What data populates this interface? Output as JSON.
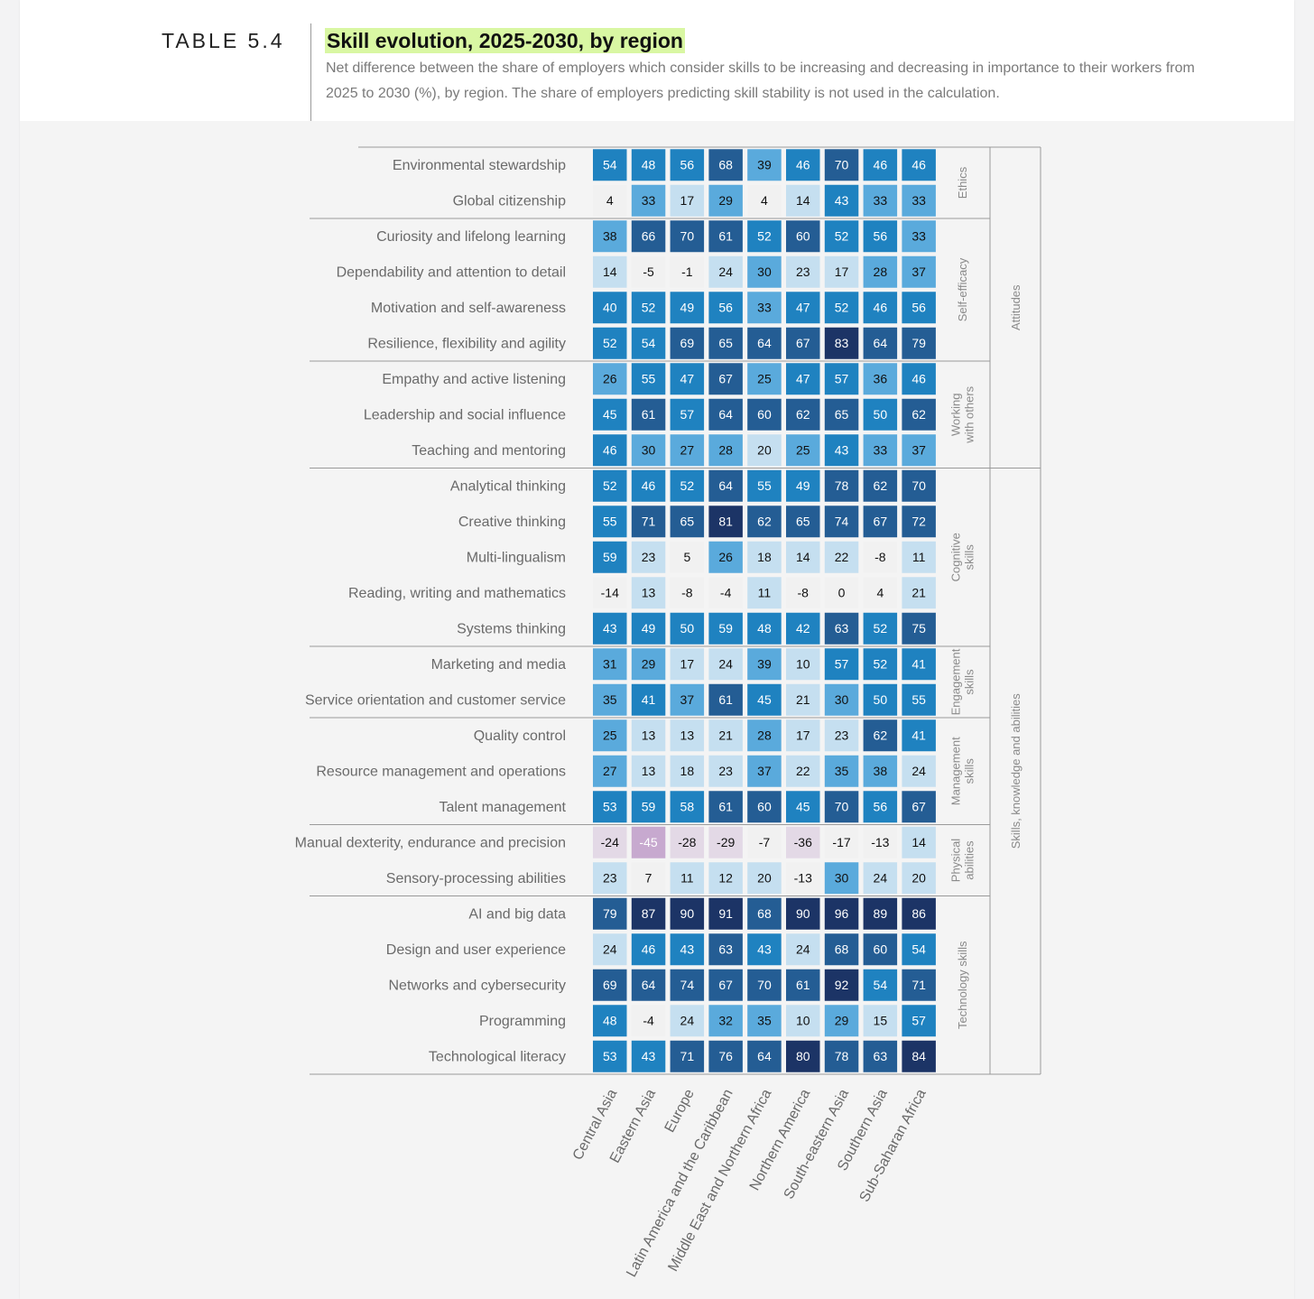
{
  "table_label": "TABLE 5.4",
  "title": "Skill evolution, 2025-2030, by region",
  "subtitle": "Net difference between the share of employers which consider skills to be increasing and decreasing in importance to their workers from 2025 to 2030 (%), by region. The share of employers predicting skill stability is not used in the calculation.",
  "chart_data": {
    "type": "heatmap",
    "title": "Skill evolution, 2025-2030, by region",
    "columns": [
      "Central Asia",
      "Eastern Asia",
      "Europe",
      "Latin America and the Caribbean",
      "Middle East and Northern Africa",
      "Northern America",
      "South-eastern Asia",
      "Southern Asia",
      "Sub-Saharan Africa"
    ],
    "rows": [
      "Environmental stewardship",
      "Global citizenship",
      "Curiosity and lifelong learning",
      "Dependability and attention to detail",
      "Motivation and self-awareness",
      "Resilience, flexibility and agility",
      "Empathy and active listening",
      "Leadership and social influence",
      "Teaching and mentoring",
      "Analytical thinking",
      "Creative thinking",
      "Multi-lingualism",
      "Reading, writing and mathematics",
      "Systems thinking",
      "Marketing and media",
      "Service orientation and customer service",
      "Quality control",
      "Resource management and operations",
      "Talent management",
      "Manual dexterity, endurance and precision",
      "Sensory-processing abilities",
      "AI and big data",
      "Design and user experience",
      "Networks and cybersecurity",
      "Programming",
      "Technological literacy"
    ],
    "values": [
      [
        54,
        48,
        56,
        68,
        39,
        46,
        70,
        46,
        46
      ],
      [
        4,
        33,
        17,
        29,
        4,
        14,
        43,
        33,
        33
      ],
      [
        38,
        66,
        70,
        61,
        52,
        60,
        52,
        56,
        33
      ],
      [
        14,
        -5,
        -1,
        24,
        30,
        23,
        17,
        28,
        37
      ],
      [
        40,
        52,
        49,
        56,
        33,
        47,
        52,
        46,
        56
      ],
      [
        52,
        54,
        69,
        65,
        64,
        67,
        83,
        64,
        79
      ],
      [
        26,
        55,
        47,
        67,
        25,
        47,
        57,
        36,
        46
      ],
      [
        45,
        61,
        57,
        64,
        60,
        62,
        65,
        50,
        62
      ],
      [
        46,
        30,
        27,
        28,
        20,
        25,
        43,
        33,
        37
      ],
      [
        52,
        46,
        52,
        64,
        55,
        49,
        78,
        62,
        70
      ],
      [
        55,
        71,
        65,
        81,
        62,
        65,
        74,
        67,
        72
      ],
      [
        59,
        23,
        5,
        26,
        18,
        14,
        22,
        -8,
        11
      ],
      [
        -14,
        13,
        -8,
        -4,
        11,
        -8,
        0,
        4,
        21
      ],
      [
        43,
        49,
        50,
        59,
        48,
        42,
        63,
        52,
        75
      ],
      [
        31,
        29,
        17,
        24,
        39,
        10,
        57,
        52,
        41
      ],
      [
        35,
        41,
        37,
        61,
        45,
        21,
        30,
        50,
        55
      ],
      [
        25,
        13,
        13,
        21,
        28,
        17,
        23,
        62,
        41
      ],
      [
        27,
        13,
        18,
        23,
        37,
        22,
        35,
        38,
        24
      ],
      [
        53,
        59,
        58,
        61,
        60,
        45,
        70,
        56,
        67
      ],
      [
        -24,
        -45,
        -28,
        -29,
        -7,
        -36,
        -17,
        -13,
        14
      ],
      [
        23,
        7,
        11,
        12,
        20,
        -13,
        30,
        24,
        20
      ],
      [
        79,
        87,
        90,
        91,
        68,
        90,
        96,
        89,
        86
      ],
      [
        24,
        46,
        43,
        63,
        43,
        24,
        68,
        60,
        54
      ],
      [
        69,
        64,
        74,
        67,
        70,
        61,
        92,
        54,
        71
      ],
      [
        48,
        -4,
        24,
        32,
        35,
        10,
        29,
        15,
        57
      ],
      [
        53,
        43,
        71,
        76,
        64,
        80,
        78,
        63,
        84
      ]
    ],
    "subgroups": [
      {
        "lines": [
          "Ethics"
        ],
        "rows": 2
      },
      {
        "lines": [
          "Self-efficacy"
        ],
        "rows": 4
      },
      {
        "lines": [
          "Working",
          "with others"
        ],
        "rows": 3
      },
      {
        "lines": [
          "Cognitive",
          "skills"
        ],
        "rows": 5
      },
      {
        "lines": [
          "Engagement",
          "skills"
        ],
        "rows": 2
      },
      {
        "lines": [
          "Management",
          "skills"
        ],
        "rows": 3
      },
      {
        "lines": [
          "Physical",
          "abilities"
        ],
        "rows": 2
      },
      {
        "lines": [
          "Technology skills"
        ],
        "rows": 5
      }
    ],
    "groups": [
      {
        "label": "Attitudes",
        "rows": 9
      },
      {
        "label": "Skills, knowledge and abilities",
        "rows": 17
      }
    ],
    "color_scale": {
      "negative_strong": "#c7a9cf",
      "negative_light": "#e3d9e6",
      "neutral": "#f1f1f1",
      "light": "#c5dff0",
      "mid": "#5aaadc",
      "blue": "#1f82c0",
      "dark": "#245d94",
      "darkest": "#1c3466"
    }
  }
}
